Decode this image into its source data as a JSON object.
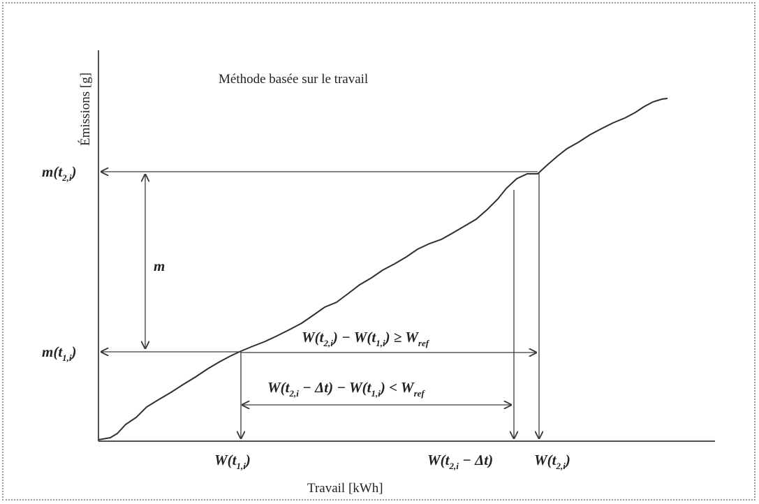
{
  "diagram": {
    "title": "Méthode basée sur le travail",
    "y_axis_label": "Émissions [g]",
    "x_axis_label": "Travail  [kWh]",
    "labels": {
      "m_t2": {
        "main": "m(t",
        "sub": "2,i",
        "close": ")"
      },
      "m_t1": {
        "main": "m(t",
        "sub": "1,i",
        "close": ")"
      },
      "m": "m",
      "W_t1": {
        "main": "W(t",
        "sub": "1,i",
        "close": ")"
      },
      "W_t2_minus_dt": {
        "main": "W(t",
        "sub": "2,i",
        "close": " − Δt)"
      },
      "W_t2": {
        "main": "W(t",
        "sub": "2,i",
        "close": ")"
      },
      "inequality_upper": {
        "p1": "W(t",
        "s1": "2,i",
        "p2": ") − W(t",
        "s2": "1,i",
        "p3": ") ≥ W",
        "s3": "ref"
      },
      "inequality_lower": {
        "p1": "W(t",
        "s1": "2,i",
        "p2": " − Δt) − W(t",
        "s2": "1,i",
        "p3": ") < W",
        "s3": "ref"
      }
    }
  }
}
